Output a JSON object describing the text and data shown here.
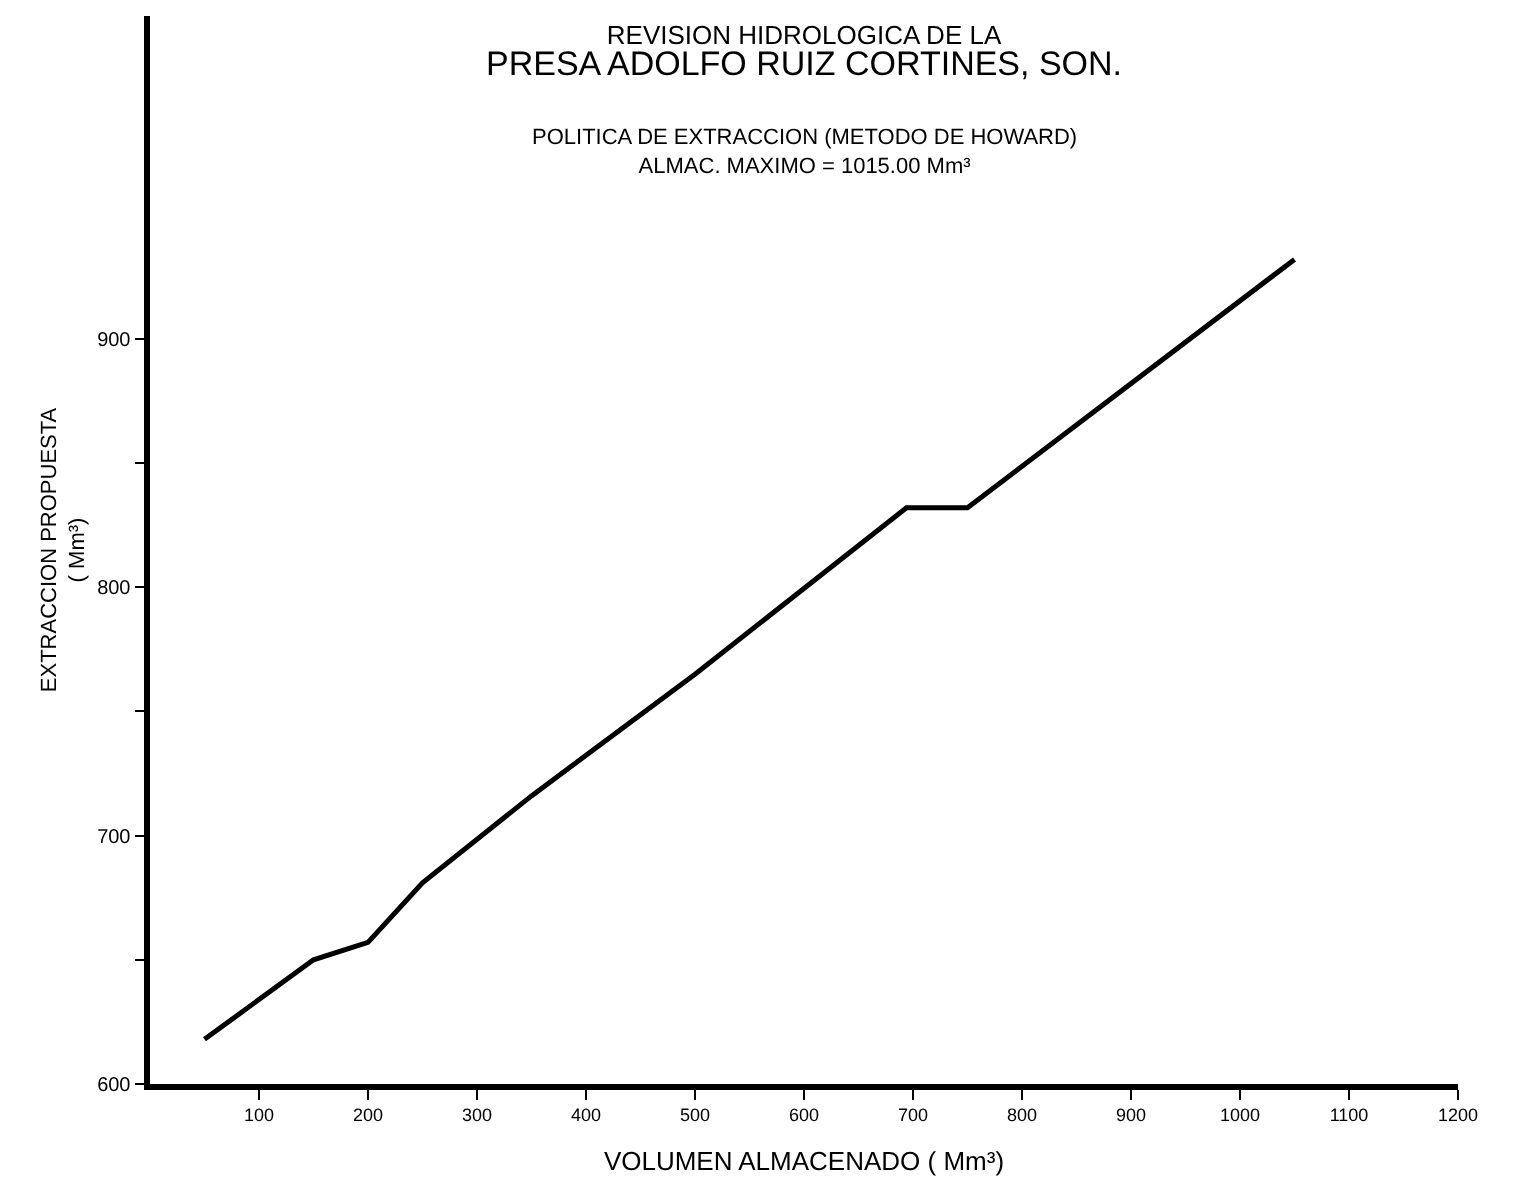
{
  "chart_data": {
    "type": "line",
    "title": "REVISION HIDROLOGICA DE LA\nPRESA ADOLFO RUIZ CORTINES, SON.",
    "subtitle": "POLITICA DE EXTRACCION (METODO DE HOWARD)\nALMAC. MAXIMO = 1015.00 Mm³",
    "xlabel": "VOLUMEN ALMACENADO ( Mm³)",
    "ylabel": "EXTRACCION PROPUESTA\n( Mm³)",
    "x": [
      50,
      150,
      200,
      250,
      350,
      500,
      694,
      750,
      1050
    ],
    "series": [
      {
        "color": "#000000",
        "values": [
          618,
          650,
          657,
          681,
          716,
          765,
          832,
          832,
          932
        ]
      }
    ],
    "xlim": [
      0,
      1200
    ],
    "xticks": [
      100,
      200,
      300,
      400,
      500,
      600,
      700,
      800,
      900,
      1000,
      1100,
      1200
    ],
    "ylim": [
      600,
      1030
    ],
    "yticks": [
      600,
      {
        "value": 650,
        "label": null
      },
      700,
      {
        "value": 750,
        "label": null
      },
      800,
      {
        "value": 850,
        "label": null
      },
      900
    ],
    "marker": "none",
    "line_style": "solid"
  }
}
